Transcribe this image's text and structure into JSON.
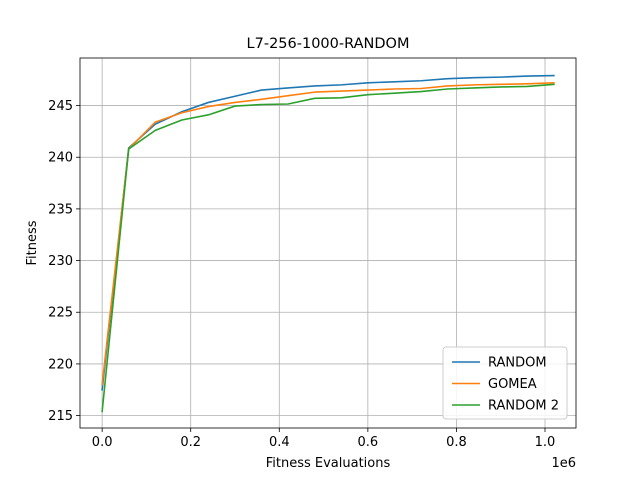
{
  "chart_data": {
    "type": "line",
    "title": "L7-256-1000-RANDOM",
    "xlabel": "Fitness Evaluations",
    "ylabel": "Fitness",
    "x_offset_label": "1e6",
    "xlim": [
      -0.05,
      1.07
    ],
    "ylim": [
      213.8,
      249.6
    ],
    "xticks": [
      0.0,
      0.2,
      0.4,
      0.6,
      0.8,
      1.0
    ],
    "xtick_labels": [
      "0.0",
      "0.2",
      "0.4",
      "0.6",
      "0.8",
      "1.0"
    ],
    "yticks": [
      215,
      220,
      225,
      230,
      235,
      240,
      245
    ],
    "ytick_labels": [
      "215",
      "220",
      "225",
      "230",
      "235",
      "240",
      "245"
    ],
    "grid": true,
    "legend_position": "lower-right",
    "series": [
      {
        "name": "RANDOM",
        "color": "#1f77b4",
        "x": [
          0.0,
          0.06,
          0.12,
          0.18,
          0.24,
          0.3,
          0.36,
          0.42,
          0.48,
          0.54,
          0.6,
          0.66,
          0.72,
          0.78,
          0.84,
          0.9,
          0.96,
          1.02
        ],
        "y": [
          217.5,
          240.9,
          243.2,
          244.4,
          245.3,
          245.9,
          246.5,
          246.7,
          246.9,
          247.0,
          247.2,
          247.3,
          247.4,
          247.6,
          247.7,
          247.75,
          247.85,
          247.9
        ]
      },
      {
        "name": "GOMEA",
        "color": "#ff7f0e",
        "x": [
          0.0,
          0.06,
          0.12,
          0.18,
          0.24,
          0.3,
          0.36,
          0.42,
          0.48,
          0.54,
          0.6,
          0.66,
          0.72,
          0.78,
          0.84,
          0.9,
          0.96,
          1.02
        ],
        "y": [
          218.0,
          240.8,
          243.4,
          244.3,
          244.9,
          245.3,
          245.6,
          245.95,
          246.3,
          246.4,
          246.5,
          246.6,
          246.65,
          246.9,
          247.0,
          247.05,
          247.1,
          247.2
        ]
      },
      {
        "name": "RANDOM 2",
        "color": "#2ca02c",
        "x": [
          0.0,
          0.06,
          0.12,
          0.18,
          0.24,
          0.3,
          0.36,
          0.42,
          0.48,
          0.54,
          0.6,
          0.66,
          0.72,
          0.78,
          0.84,
          0.9,
          0.96,
          1.02
        ],
        "y": [
          215.4,
          240.8,
          242.6,
          243.6,
          244.1,
          244.95,
          245.1,
          245.15,
          245.7,
          245.75,
          246.05,
          246.2,
          246.35,
          246.6,
          246.7,
          246.8,
          246.85,
          247.05
        ]
      }
    ]
  }
}
